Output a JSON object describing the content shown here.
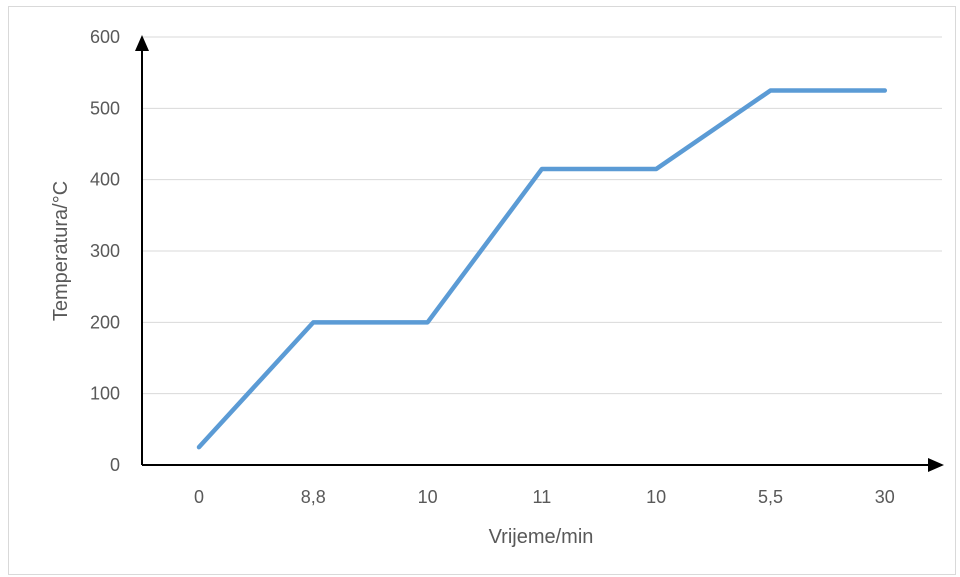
{
  "chart_data": {
    "type": "line",
    "title": "",
    "xlabel": "Vrijeme/min",
    "ylabel": "Temperatura/°C",
    "categories": [
      "0",
      "8,8",
      "10",
      "11",
      "10",
      "5,5",
      "30"
    ],
    "series": [
      {
        "values": [
          25,
          200,
          200,
          415,
          415,
          525,
          525
        ]
      }
    ],
    "ylim": [
      0,
      600
    ],
    "yticks": [
      "0",
      "100",
      "200",
      "300",
      "400",
      "500",
      "600"
    ],
    "grid": true,
    "legend": "none",
    "colors": {
      "line": "#5b9bd5",
      "grid": "#d9d9d9",
      "axis": "#000000",
      "text": "#595959"
    }
  }
}
